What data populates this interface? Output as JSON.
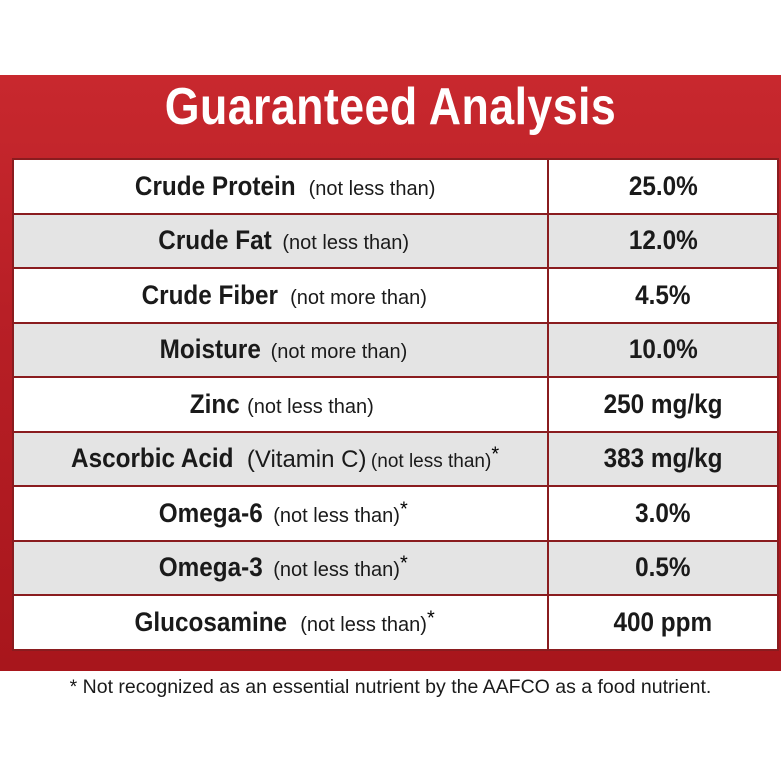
{
  "title": "Guaranteed Analysis",
  "rows": [
    {
      "name": "Crude Protein",
      "qualifier": "(not less than)",
      "asterisk": "",
      "value": "25.0%"
    },
    {
      "name": "Crude Fat",
      "qualifier": "(not less than)",
      "asterisk": "",
      "value": "12.0%"
    },
    {
      "name": "Crude Fiber",
      "qualifier": "(not more than)",
      "asterisk": "",
      "value": "4.5%"
    },
    {
      "name": "Moisture",
      "qualifier": "(not more than)",
      "asterisk": "",
      "value": "10.0%"
    },
    {
      "name": "Zinc",
      "qualifier": "(not less than)",
      "asterisk": "",
      "value": "250 mg/kg"
    },
    {
      "name": "Ascorbic Acid",
      "sub": "(Vitamin C)",
      "qualifier": "(not less than)",
      "asterisk": "*",
      "value": "383 mg/kg"
    },
    {
      "name": "Omega-6",
      "qualifier": "(not less than)",
      "asterisk": "*",
      "value": "3.0%"
    },
    {
      "name": "Omega-3",
      "qualifier": "(not less than)",
      "asterisk": "*",
      "value": "0.5%"
    },
    {
      "name": "Glucosamine",
      "qualifier": "(not less than)",
      "asterisk": "*",
      "value": "400 ppm"
    }
  ],
  "footnote": "* Not recognized as an essential nutrient by the AAFCO as a food nutrient."
}
